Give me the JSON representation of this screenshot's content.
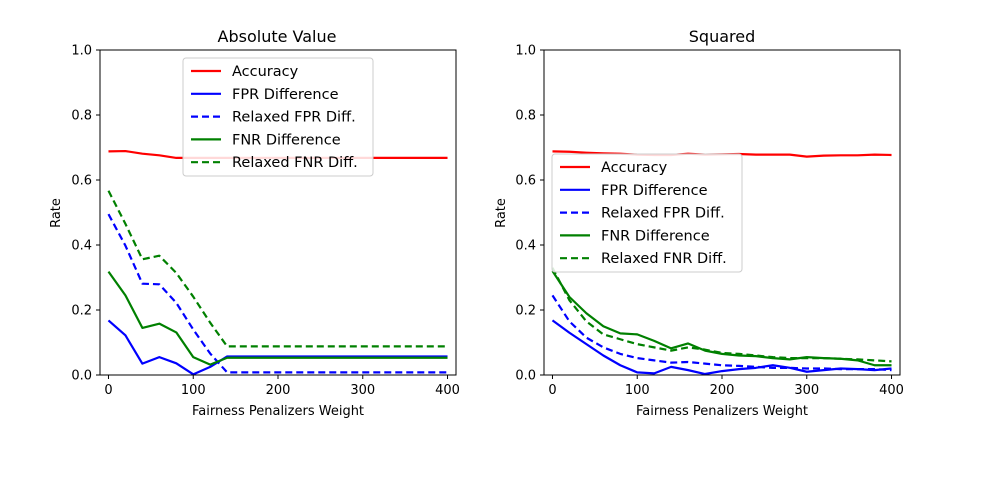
{
  "chart_data": [
    {
      "type": "line",
      "title": "Absolute Value",
      "xlabel": "Fairness Penalizers Weight",
      "ylabel": "Rate",
      "xlim": [
        -10,
        410
      ],
      "ylim": [
        0.0,
        1.0
      ],
      "xticks": [
        "0",
        "100",
        "200",
        "300",
        "400"
      ],
      "yticks": [
        "0.0",
        "0.2",
        "0.4",
        "0.6",
        "0.8",
        "1.0"
      ],
      "legend_position": "top-center",
      "x": [
        0,
        20,
        40,
        60,
        80,
        100,
        120,
        140,
        160,
        180,
        200,
        220,
        240,
        260,
        280,
        300,
        320,
        340,
        360,
        380,
        400
      ],
      "series": [
        {
          "name": "Accuracy",
          "color": "#ff0000",
          "dash": "solid",
          "values": [
            0.688,
            0.689,
            0.681,
            0.676,
            0.668,
            0.668,
            0.668,
            0.668,
            0.668,
            0.668,
            0.668,
            0.668,
            0.668,
            0.668,
            0.668,
            0.668,
            0.668,
            0.668,
            0.668,
            0.668,
            0.668
          ]
        },
        {
          "name": "FPR Difference",
          "color": "#0000ff",
          "dash": "solid",
          "values": [
            0.168,
            0.122,
            0.035,
            0.055,
            0.036,
            0.002,
            0.025,
            0.057,
            0.057,
            0.057,
            0.057,
            0.057,
            0.057,
            0.057,
            0.057,
            0.057,
            0.057,
            0.057,
            0.057,
            0.057,
            0.057
          ]
        },
        {
          "name": "Relaxed FPR Diff.",
          "color": "#0000ff",
          "dash": "dashed",
          "values": [
            0.495,
            0.398,
            0.281,
            0.279,
            0.222,
            0.14,
            0.066,
            0.008,
            0.008,
            0.008,
            0.008,
            0.008,
            0.008,
            0.008,
            0.008,
            0.008,
            0.008,
            0.008,
            0.008,
            0.008,
            0.008
          ]
        },
        {
          "name": "FNR Difference",
          "color": "#008000",
          "dash": "solid",
          "values": [
            0.318,
            0.245,
            0.145,
            0.158,
            0.131,
            0.055,
            0.032,
            0.053,
            0.053,
            0.053,
            0.053,
            0.053,
            0.053,
            0.053,
            0.053,
            0.053,
            0.053,
            0.053,
            0.053,
            0.053,
            0.053
          ]
        },
        {
          "name": "Relaxed FNR Diff.",
          "color": "#008000",
          "dash": "dashed",
          "values": [
            0.567,
            0.465,
            0.356,
            0.367,
            0.314,
            0.241,
            0.161,
            0.088,
            0.088,
            0.088,
            0.088,
            0.088,
            0.088,
            0.088,
            0.088,
            0.088,
            0.088,
            0.088,
            0.088,
            0.088,
            0.088
          ]
        }
      ]
    },
    {
      "type": "line",
      "title": "Squared",
      "xlabel": "Fairness Penalizers Weight",
      "ylabel": "Rate",
      "xlim": [
        -10,
        410
      ],
      "ylim": [
        0.0,
        1.0
      ],
      "xticks": [
        "0",
        "100",
        "200",
        "300",
        "400"
      ],
      "yticks": [
        "0.0",
        "0.2",
        "0.4",
        "0.6",
        "0.8",
        "1.0"
      ],
      "legend_position": "center-left",
      "x": [
        0,
        20,
        40,
        60,
        80,
        100,
        120,
        140,
        160,
        180,
        200,
        220,
        240,
        260,
        280,
        300,
        320,
        340,
        360,
        380,
        400
      ],
      "series": [
        {
          "name": "Accuracy",
          "color": "#ff0000",
          "dash": "solid",
          "values": [
            0.688,
            0.687,
            0.684,
            0.682,
            0.681,
            0.678,
            0.677,
            0.677,
            0.681,
            0.678,
            0.679,
            0.68,
            0.678,
            0.678,
            0.678,
            0.672,
            0.675,
            0.676,
            0.676,
            0.678,
            0.677
          ]
        },
        {
          "name": "FPR Difference",
          "color": "#0000ff",
          "dash": "solid",
          "values": [
            0.168,
            0.13,
            0.095,
            0.06,
            0.03,
            0.008,
            0.005,
            0.025,
            0.015,
            0.003,
            0.012,
            0.018,
            0.022,
            0.03,
            0.022,
            0.01,
            0.015,
            0.02,
            0.018,
            0.015,
            0.02
          ]
        },
        {
          "name": "Relaxed FPR Diff.",
          "color": "#0000ff",
          "dash": "dashed",
          "values": [
            0.245,
            0.165,
            0.115,
            0.085,
            0.065,
            0.052,
            0.045,
            0.038,
            0.04,
            0.035,
            0.03,
            0.028,
            0.025,
            0.022,
            0.022,
            0.02,
            0.02,
            0.018,
            0.018,
            0.018,
            0.015
          ]
        },
        {
          "name": "FNR Difference",
          "color": "#008000",
          "dash": "solid",
          "values": [
            0.32,
            0.24,
            0.19,
            0.15,
            0.128,
            0.125,
            0.105,
            0.082,
            0.097,
            0.075,
            0.065,
            0.06,
            0.058,
            0.052,
            0.048,
            0.055,
            0.052,
            0.05,
            0.045,
            0.03,
            0.03
          ]
        },
        {
          "name": "Relaxed FNR Diff.",
          "color": "#008000",
          "dash": "dashed",
          "values": [
            0.33,
            0.23,
            0.165,
            0.125,
            0.11,
            0.095,
            0.085,
            0.075,
            0.085,
            0.078,
            0.068,
            0.065,
            0.06,
            0.055,
            0.052,
            0.052,
            0.052,
            0.05,
            0.048,
            0.045,
            0.042
          ]
        }
      ]
    }
  ]
}
